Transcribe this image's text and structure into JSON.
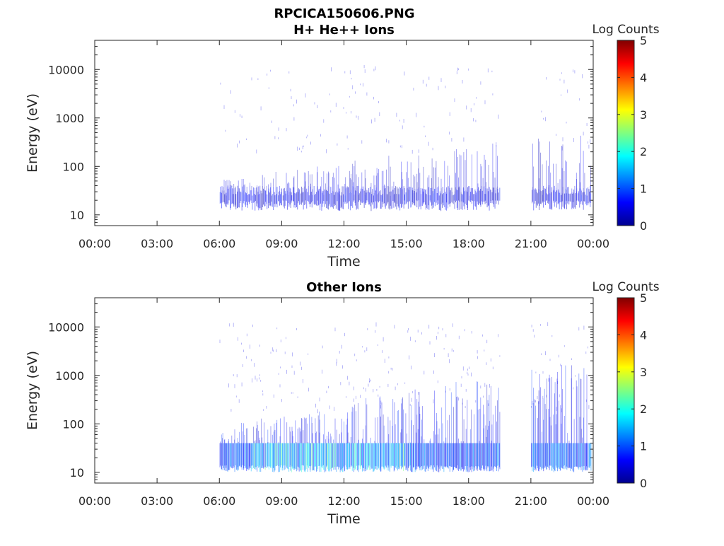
{
  "figure": {
    "title": "RPCICA150606.PNG"
  },
  "chart_data": [
    {
      "type": "heatmap",
      "title": "H+ He++ Ions",
      "xlabel": "Time",
      "ylabel": "Energy (eV)",
      "x_ticks": [
        "00:00",
        "03:00",
        "06:00",
        "09:00",
        "12:00",
        "15:00",
        "18:00",
        "21:00",
        "00:00"
      ],
      "x_range_hours": [
        0,
        24
      ],
      "y_scale": "log",
      "y_ticks": [
        10,
        100,
        1000,
        10000
      ],
      "y_tick_labels": [
        "10",
        "100",
        "1000",
        "10000"
      ],
      "y_range": [
        6,
        40000
      ],
      "colorbar": {
        "title": "Log Counts",
        "ticks": [
          "0",
          "1",
          "2",
          "3",
          "4",
          "5"
        ],
        "range": [
          0,
          5
        ],
        "colormap": "jet"
      },
      "data_gap_hours": [
        19.5,
        21.0
      ],
      "data_start_hour": 6.0,
      "data_end_hour": 23.9,
      "peak_log_counts": 0.8
    },
    {
      "type": "heatmap",
      "title": "Other Ions",
      "xlabel": "Time",
      "ylabel": "Energy (eV)",
      "x_ticks": [
        "00:00",
        "03:00",
        "06:00",
        "09:00",
        "12:00",
        "15:00",
        "18:00",
        "21:00",
        "00:00"
      ],
      "x_range_hours": [
        0,
        24
      ],
      "y_scale": "log",
      "y_ticks": [
        10,
        100,
        1000,
        10000
      ],
      "y_tick_labels": [
        "10",
        "100",
        "1000",
        "10000"
      ],
      "y_range": [
        6,
        40000
      ],
      "colorbar": {
        "title": "Log Counts",
        "ticks": [
          "0",
          "1",
          "2",
          "3",
          "4",
          "5"
        ],
        "range": [
          0,
          5
        ],
        "colormap": "jet"
      },
      "data_gap_hours": [
        19.5,
        21.0
      ],
      "data_start_hour": 6.0,
      "data_end_hour": 23.9,
      "peak_log_counts": 1.8
    }
  ]
}
